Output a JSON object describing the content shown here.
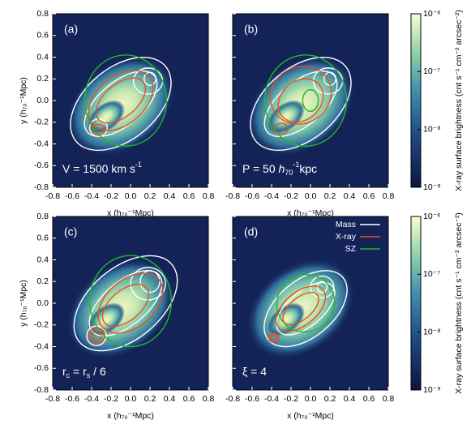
{
  "chart_data": [
    {
      "type": "heatmap",
      "panel_label": "(a)",
      "annotation": [
        {
          "text": "V = 1500 km s"
        },
        {
          "text": "-1",
          "sup": true
        }
      ],
      "xlabel": "x (h₇₀⁻¹Mpc)",
      "ylabel": "y (h₇₀⁻¹Mpc)",
      "xlim": [
        -0.8,
        0.8
      ],
      "ylim": [
        -0.8,
        0.8
      ],
      "xticks": [
        -0.8,
        -0.6,
        -0.4,
        -0.2,
        {
          "value": 0,
          "label": "0.0"
        },
        0.2,
        0.4,
        0.6,
        0.8
      ],
      "yticks": [
        -0.8,
        -0.6,
        -0.4,
        -0.2,
        {
          "value": 0,
          "label": "0.0"
        },
        0.2,
        0.4,
        0.6,
        0.8
      ],
      "ytick_labels": true
    },
    {
      "type": "heatmap",
      "panel_label": "(b)",
      "annotation": [
        {
          "text": "P = 50 "
        },
        {
          "text": "h",
          "italic": true
        },
        {
          "text": "70",
          "sub": true
        },
        {
          "text": "-1",
          "sup": true
        },
        {
          "text": "kpc"
        }
      ],
      "xlabel": "x (h₇₀⁻¹Mpc)",
      "xlim": [
        -0.8,
        0.8
      ],
      "ylim": [
        -0.8,
        0.8
      ],
      "xticks": [
        -0.8,
        -0.6,
        -0.4,
        -0.2,
        {
          "value": 0,
          "label": "0.0"
        },
        0.2,
        0.4,
        0.6,
        0.8
      ],
      "yticks": [
        -0.8,
        -0.6,
        -0.4,
        -0.2,
        {
          "value": 0,
          "label": "0.0"
        },
        0.2,
        0.4,
        0.6,
        0.8
      ],
      "ytick_labels": false,
      "colorbar": {
        "label": "X-ray surface brightness (cnt s⁻¹ cm⁻² arcsec⁻²)",
        "lim": [
          1e-09,
          1e-06
        ],
        "log": true,
        "ticks": [
          {
            "value": 1e-09,
            "label": "10⁻⁹"
          },
          {
            "value": 1e-08,
            "label": "10⁻⁸"
          },
          {
            "value": 1e-07,
            "label": "10⁻⁷"
          },
          {
            "value": 1e-06,
            "label": "10⁻⁶"
          }
        ]
      }
    },
    {
      "type": "heatmap",
      "panel_label": "(c)",
      "annotation": [
        {
          "text": "r"
        },
        {
          "text": "c",
          "sub": true
        },
        {
          "text": " = r"
        },
        {
          "text": "s",
          "sub": true
        },
        {
          "text": " / 6"
        }
      ],
      "xlabel": "x (h₇₀⁻¹Mpc)",
      "ylabel": "y (h₇₀⁻¹Mpc)",
      "xlim": [
        -0.8,
        0.8
      ],
      "ylim": [
        -0.8,
        0.8
      ],
      "xticks": [
        -0.8,
        -0.6,
        -0.4,
        -0.2,
        {
          "value": 0,
          "label": "0.0"
        },
        0.2,
        0.4,
        0.6,
        0.8
      ],
      "yticks": [
        -0.8,
        -0.6,
        -0.4,
        -0.2,
        {
          "value": 0,
          "label": "0.0"
        },
        0.2,
        0.4,
        0.6,
        0.8
      ],
      "ytick_labels": true
    },
    {
      "type": "heatmap",
      "panel_label": "(d)",
      "annotation": [
        {
          "text": "ξ = 4"
        }
      ],
      "xlabel": "x (h₇₀⁻¹Mpc)",
      "xlim": [
        -0.8,
        0.8
      ],
      "ylim": [
        -0.8,
        0.8
      ],
      "xticks": [
        -0.8,
        -0.6,
        -0.4,
        -0.2,
        {
          "value": 0,
          "label": "0.0"
        },
        0.2,
        0.4,
        0.6,
        0.8
      ],
      "yticks": [
        -0.8,
        -0.6,
        -0.4,
        -0.2,
        {
          "value": 0,
          "label": "0.0"
        },
        0.2,
        0.4,
        0.6,
        0.8
      ],
      "ytick_labels": false,
      "legend": [
        {
          "name": "Mass",
          "color": "#ffffff"
        },
        {
          "name": "X-ray",
          "color": "#e8501e"
        },
        {
          "name": "SZ",
          "color": "#22b82a"
        }
      ],
      "legend_position": "upper right",
      "colorbar": {
        "label": "X-ray surface brightness (cnt s⁻¹ cm⁻² arcsec⁻²)",
        "lim": [
          1e-09,
          1e-06
        ],
        "log": true,
        "ticks": [
          {
            "value": 1e-09,
            "label": "10⁻⁹"
          },
          {
            "value": 1e-08,
            "label": "10⁻⁸"
          },
          {
            "value": 1e-07,
            "label": "10⁻⁷"
          },
          {
            "value": 1e-06,
            "label": "10⁻⁶"
          }
        ]
      }
    }
  ]
}
